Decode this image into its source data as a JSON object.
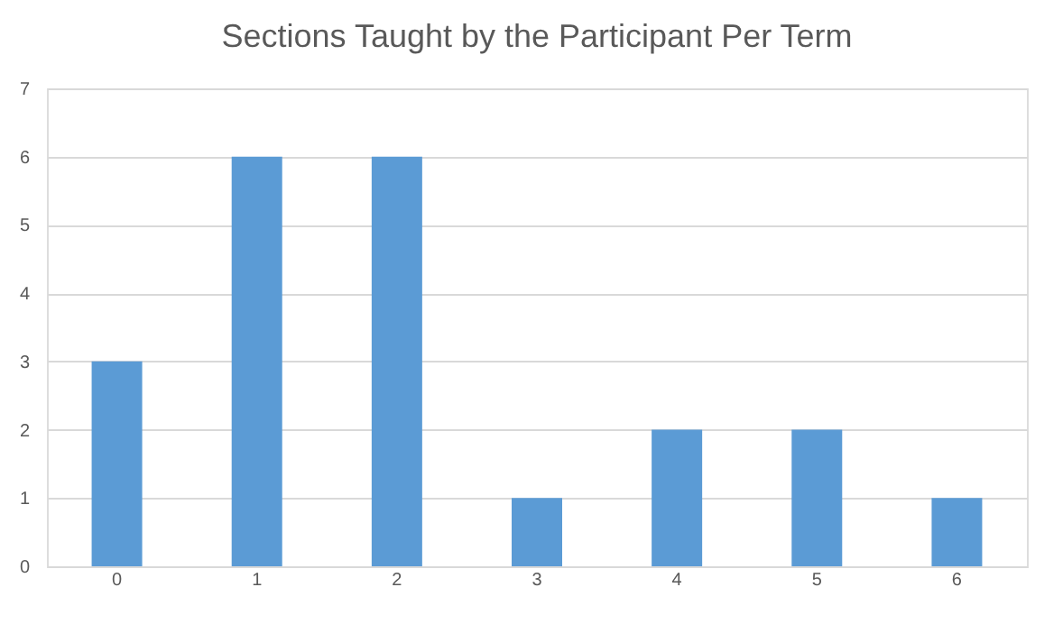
{
  "chart_data": {
    "type": "bar",
    "title": "Sections Taught by the Participant Per Term",
    "categories": [
      "0",
      "1",
      "2",
      "3",
      "4",
      "5",
      "6"
    ],
    "values": [
      3,
      6,
      6,
      1,
      2,
      2,
      1
    ],
    "color": "#5b9bd5",
    "ylim": [
      0,
      7
    ],
    "yticks": [
      0,
      1,
      2,
      3,
      4,
      5,
      6,
      7
    ],
    "grid": "y"
  }
}
